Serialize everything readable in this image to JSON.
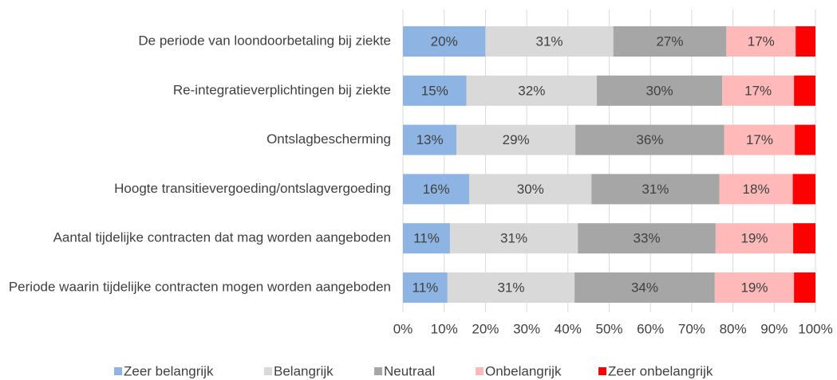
{
  "chart_data": {
    "type": "stacked_barh",
    "categories": [
      "De periode van loondoorbetaling bij ziekte",
      "Re-integratieverplichtingen bij ziekte",
      "Ontslagbescherming",
      "Hoogte transitievergoeding/ontslagvergoeding",
      "Aantal tijdelijke contracten dat mag worden aangeboden",
      "Periode waarin tijdelijke contracten mogen worden aangeboden"
    ],
    "series": [
      {
        "name": "Zeer belangrijk",
        "color": "#8db4e2",
        "values": [
          20,
          15.4,
          13,
          16.1,
          11.4,
          10.8
        ],
        "value_labels": [
          "20%",
          "15%",
          "13%",
          "16%",
          "11%",
          "11%"
        ]
      },
      {
        "name": "Belangrijk",
        "color": "#d9d9d9",
        "values": [
          31,
          31.6,
          28.8,
          29.6,
          31,
          30.8
        ],
        "value_labels": [
          "31%",
          "32%",
          "29%",
          "30%",
          "31%",
          "31%"
        ]
      },
      {
        "name": "Neutraal",
        "color": "#a6a6a6",
        "values": [
          27.4,
          30.4,
          36.1,
          31,
          33.4,
          34
        ],
        "value_labels": [
          "27%",
          "30%",
          "36%",
          "31%",
          "33%",
          "34%"
        ]
      },
      {
        "name": "Onbelangrijk",
        "color": "#ffb9b9",
        "values": [
          16.8,
          17.4,
          17.1,
          17.8,
          18.8,
          19.2
        ],
        "value_labels": [
          "17%",
          "17%",
          "17%",
          "18%",
          "19%",
          "19%"
        ]
      },
      {
        "name": "Zeer onbelangrijk",
        "color": "#ff0000",
        "values": [
          4.8,
          5.2,
          5,
          5.5,
          5.4,
          5.2
        ]
      }
    ],
    "xlim": [
      0,
      100
    ],
    "xticks": [
      {
        "value": 0,
        "label": "0%"
      },
      {
        "value": 10,
        "label": "10%"
      },
      {
        "value": 20,
        "label": "20%"
      },
      {
        "value": 30,
        "label": "30%"
      },
      {
        "value": 40,
        "label": "40%"
      },
      {
        "value": 50,
        "label": "50%"
      },
      {
        "value": 60,
        "label": "60%"
      },
      {
        "value": 70,
        "label": "70%"
      },
      {
        "value": 80,
        "label": "80%"
      },
      {
        "value": 90,
        "label": "90%"
      },
      {
        "value": 100,
        "label": "100%"
      }
    ],
    "grid": true,
    "legend": "bottom"
  }
}
